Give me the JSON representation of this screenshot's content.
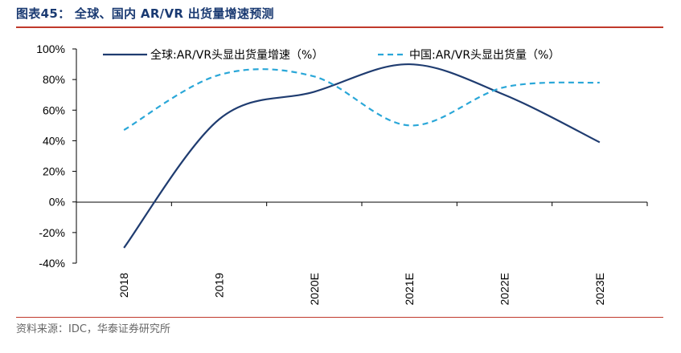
{
  "header": {
    "title": "图表45：  全球、国内 AR/VR 出货量增速预测"
  },
  "source": {
    "text": "资料来源：IDC，华泰证券研究所"
  },
  "colors": {
    "accent_rule": "#c0392b",
    "series_global": "#1f3c70",
    "series_china": "#2aa7d8",
    "title": "#1a3a72"
  },
  "chart_data": {
    "type": "line",
    "categories": [
      "2018",
      "2019",
      "2020E",
      "2021E",
      "2022E",
      "2023E"
    ],
    "series": [
      {
        "name": "全球:AR/VR头显出货量增速（%）",
        "values": [
          -30,
          54,
          72,
          90,
          70,
          39
        ],
        "style": "solid"
      },
      {
        "name": "中国:AR/VR头显出货量（%）",
        "values": [
          47,
          83,
          82,
          50,
          75,
          78
        ],
        "style": "dashed"
      }
    ],
    "yticks": [
      "100%",
      "80%",
      "60%",
      "40%",
      "20%",
      "0%",
      "-20%",
      "-40%"
    ],
    "ylim": [
      -40,
      100
    ],
    "legend": "top",
    "grid": false
  }
}
